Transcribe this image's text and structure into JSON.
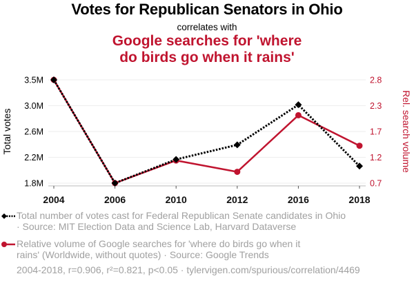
{
  "title": "Votes for Republican Senators in Ohio",
  "subtitle": "correlates with",
  "title2_line1": "Google searches for 'where",
  "title2_line2": "do birds go when it rains'",
  "colors": {
    "votes": "#000000",
    "search": "#c0142f",
    "grid": "#eeeeee",
    "axis": "#bbbbbb",
    "legend_text": "#a0a0a0"
  },
  "chart_data": {
    "type": "line",
    "title": "Votes for Republican Senators in Ohio correlates with Google searches for 'where do birds go when it rains'",
    "x": [
      "2004",
      "2006",
      "2010",
      "2012",
      "2016",
      "2018"
    ],
    "xlabel": "",
    "grid": true,
    "legend_position": "bottom",
    "y_left": {
      "label": "Total votes",
      "ticks": [
        "3.5M",
        "3.0M",
        "2.6M",
        "2.2M",
        "1.8M"
      ],
      "range": [
        1.8,
        3.5
      ],
      "unit": "M"
    },
    "y_right": {
      "label": "Rel. search volume",
      "ticks": [
        "2.8",
        "2.3",
        "1.7",
        "1.2",
        "0.7"
      ],
      "range": [
        0.7,
        2.8
      ]
    },
    "series": [
      {
        "name": "Total number of votes cast for Federal Republican Senate candidates in Ohio",
        "axis": "left",
        "style": "dotted",
        "marker": "diamond",
        "values": [
          3.5,
          1.8,
          2.19,
          2.43,
          3.09,
          2.08
        ]
      },
      {
        "name": "Relative volume of Google searches for 'where do birds go when it rains' (Worldwide, without quotes)",
        "axis": "right",
        "style": "solid",
        "marker": "circle",
        "values": [
          2.8,
          0.7,
          1.16,
          0.93,
          2.08,
          1.46
        ]
      }
    ]
  },
  "legend": {
    "votes_line1": "Total number of votes cast for Federal Republican Senate candidates in Ohio",
    "votes_line2": "· Source: MIT Election Data and Science Lab, Harvard Dataverse",
    "search_line1": "Relative volume of Google searches for 'where do birds go when it",
    "search_line2": "rains' (Worldwide, without quotes) · Source: Google Trends"
  },
  "footer": "2004-2018, r=0.906, r²=0.821, p<0.05 · tylervigen.com/spurious/correlation/4469"
}
